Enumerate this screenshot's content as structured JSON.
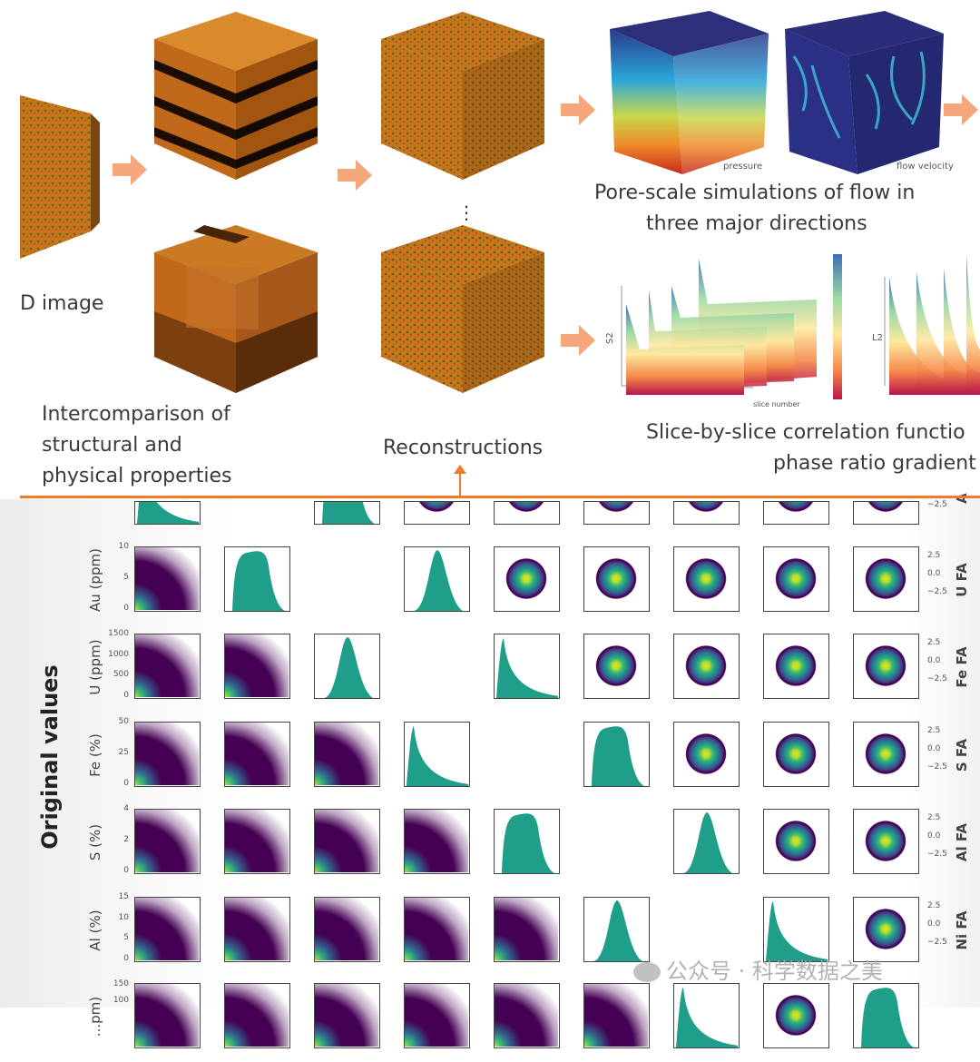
{
  "top": {
    "input_label": "D image",
    "intercomparison_lines": [
      "Intercomparison of",
      "structural and",
      "physical properties"
    ],
    "reconstructions": "Reconstructions",
    "ellipsis": "⋮",
    "pore_scale_lines": [
      "Pore-scale simulations of flow in",
      "three major directions"
    ],
    "pressure_label": "pressure",
    "flow_velocity_label": "flow velocity",
    "slice_lines": [
      "Slice-by-slice correlation functio",
      "phase ratio gradient"
    ],
    "s2_axis": "S2",
    "l2_axis": "L2",
    "slice_number": "slice number"
  },
  "colors": {
    "accent_orange": "#f07a2a",
    "arrow_orange": "#f4a77a",
    "rock_orange": "#c8741a",
    "histogram_green": "#1f9e89",
    "scatter_purple": "#440154"
  },
  "pairplot": {
    "left_title": "Original values",
    "row_labels": [
      "Au (ppm)",
      "U (ppm)",
      "Fe (%)",
      "S (%)",
      "Al (%)",
      "...pm)"
    ],
    "row_ticks": [
      [
        "10",
        "5",
        "0"
      ],
      [
        "1500",
        "1000",
        "500",
        "0"
      ],
      [
        "50",
        "25",
        "0"
      ],
      [
        "4",
        "2",
        "0"
      ],
      [
        "15",
        "10",
        "5",
        "0"
      ],
      [
        "150",
        "100"
      ]
    ],
    "right_labels": [
      "A",
      "U FA",
      "Fe FA",
      "S FA",
      "Al FA",
      "Ni FA"
    ],
    "right_ticks": [
      "2.5",
      "0.0",
      "−2.5"
    ]
  },
  "watermark": "公众号 · 科学数据之美"
}
